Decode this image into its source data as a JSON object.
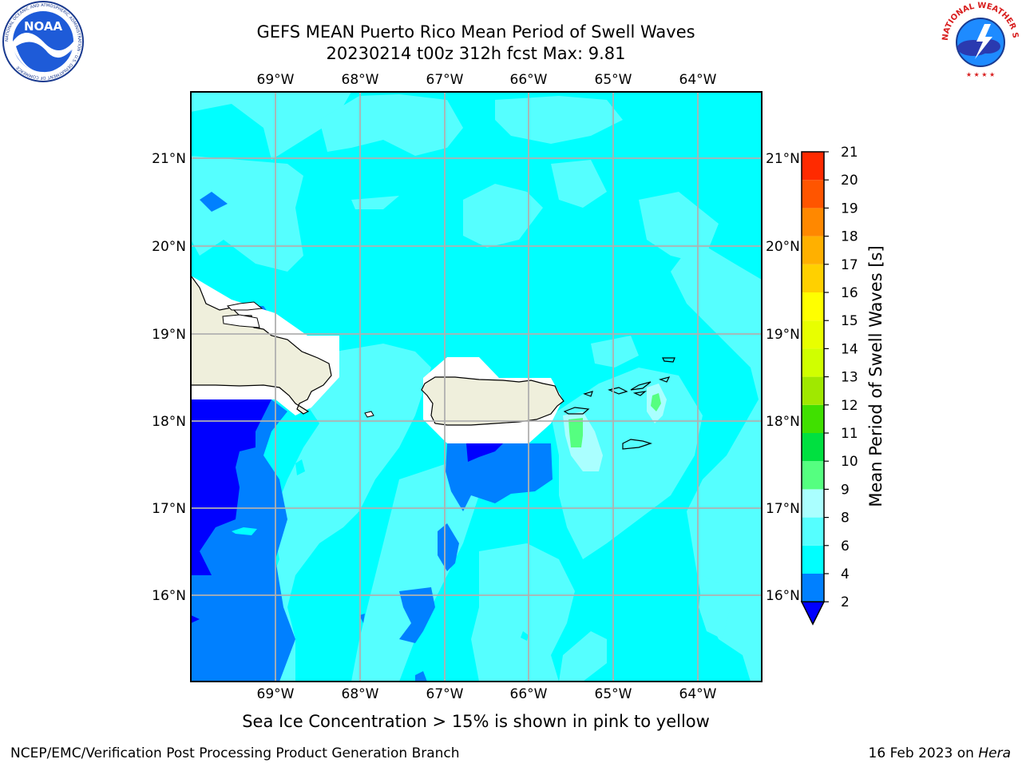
{
  "header": {
    "title_line1": "GEFS MEAN Puerto Rico Mean Period of Swell Waves",
    "title_line2": "20230214 t00z 312h fcst   Max: 9.81"
  },
  "logos": {
    "left": {
      "text": "NOAA",
      "ring_text": "NATIONAL OCEANIC AND ATMOSPHERIC ADMINISTRATION · U.S. DEPARTMENT OF COMMERCE"
    },
    "right": {
      "ring_text": "NATIONAL WEATHER SERVICE"
    }
  },
  "map": {
    "lon_labels": [
      "69°W",
      "68°W",
      "67°W",
      "66°W",
      "65°W",
      "64°W"
    ],
    "lat_labels": [
      "21°N",
      "20°N",
      "19°N",
      "18°N",
      "17°N",
      "16°N"
    ],
    "lon_values": [
      -69,
      -68,
      -67,
      -66,
      -65,
      -64
    ],
    "lat_values": [
      21,
      20,
      19,
      18,
      17,
      16
    ],
    "extent": {
      "lon_min": -70.0,
      "lon_max": -63.25,
      "lat_min": 15.0,
      "lat_max": 21.75
    },
    "land_color": "#efefdc",
    "ocean_dominant_color": "#00ffff"
  },
  "colorbar": {
    "title": "Mean Period of Swell Waves [s]",
    "tick_labels": [
      "2",
      "4",
      "6",
      "8",
      "9",
      "10",
      "11",
      "12",
      "13",
      "14",
      "15",
      "16",
      "17",
      "18",
      "19",
      "20",
      "21"
    ],
    "levels": [
      2,
      4,
      6,
      8,
      9,
      10,
      11,
      12,
      13,
      14,
      15,
      16,
      17,
      18,
      19,
      20,
      21
    ],
    "colors": [
      "#0080ff",
      "#00ffff",
      "#55ffff",
      "#aaffff",
      "#55ff80",
      "#00e040",
      "#40e000",
      "#a0e800",
      "#d0ff00",
      "#e8ff00",
      "#ffff00",
      "#ffd000",
      "#ffb000",
      "#ff8800",
      "#ff5500",
      "#ff2a00"
    ],
    "under_color": "#0000ff",
    "over_color": "#ff0000"
  },
  "note": "Sea Ice Concentration > 15% is shown in pink to yellow",
  "footer": {
    "left": "NCEP/EMC/Verification Post Processing Product Generation Branch",
    "right_date": "16 Feb 2023 on ",
    "right_host": "Hera"
  }
}
